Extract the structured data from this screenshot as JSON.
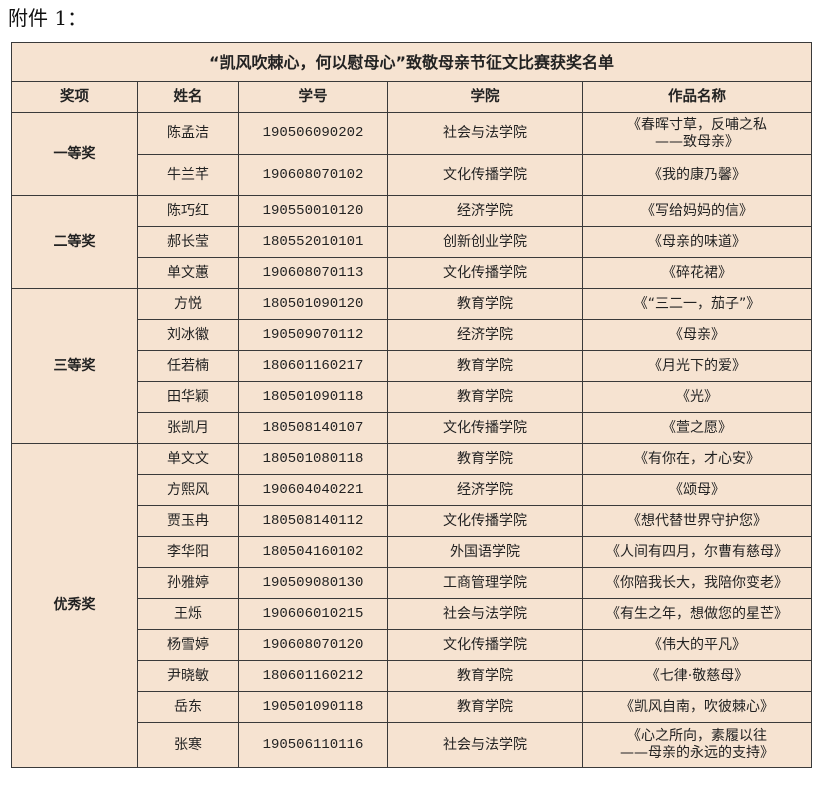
{
  "caption": "附件 1：",
  "table": {
    "title": "“凯风吹棘心，何以慰母心”致敬母亲节征文比赛获奖名单",
    "headers": [
      "奖项",
      "姓名",
      "学号",
      "学院",
      "作品名称"
    ],
    "groups": [
      {
        "award": "一等奖",
        "rows": [
          {
            "name": "陈孟洁",
            "id": "190506090202",
            "college": "社会与法学院",
            "work": "《春晖寸草，反哺之私",
            "work2": "——致母亲》"
          },
          {
            "name": "牛兰芊",
            "id": "190608070102",
            "college": "文化传播学院",
            "work": "《我的康乃馨》"
          }
        ]
      },
      {
        "award": "二等奖",
        "rows": [
          {
            "name": "陈巧红",
            "id": "190550010120",
            "college": "经济学院",
            "work": "《写给妈妈的信》"
          },
          {
            "name": "郝长莹",
            "id": "180552010101",
            "college": "创新创业学院",
            "work": "《母亲的味道》"
          },
          {
            "name": "单文蕙",
            "id": "190608070113",
            "college": "文化传播学院",
            "work": "《碎花裙》"
          }
        ]
      },
      {
        "award": "三等奖",
        "rows": [
          {
            "name": "方悦",
            "id": "180501090120",
            "college": "教育学院",
            "work": "《“三二一，茄子”》"
          },
          {
            "name": "刘冰徽",
            "id": "190509070112",
            "college": "经济学院",
            "work": "《母亲》"
          },
          {
            "name": "任若楠",
            "id": "180601160217",
            "college": "教育学院",
            "work": "《月光下的爱》"
          },
          {
            "name": "田华颖",
            "id": "180501090118",
            "college": "教育学院",
            "work": "《光》"
          },
          {
            "name": "张凯月",
            "id": "180508140107",
            "college": "文化传播学院",
            "work": "《萱之愿》"
          }
        ]
      },
      {
        "award": "优秀奖",
        "rows": [
          {
            "name": "单文文",
            "id": "180501080118",
            "college": "教育学院",
            "work": "《有你在，才心安》"
          },
          {
            "name": "方熙风",
            "id": "190604040221",
            "college": "经济学院",
            "work": "《颂母》"
          },
          {
            "name": "贾玉冉",
            "id": "180508140112",
            "college": "文化传播学院",
            "work": "《想代替世界守护您》"
          },
          {
            "name": "李华阳",
            "id": "180504160102",
            "college": "外国语学院",
            "work": "《人间有四月，尔曹有慈母》"
          },
          {
            "name": "孙雅婷",
            "id": "190509080130",
            "college": "工商管理学院",
            "work": "《你陪我长大，我陪你变老》"
          },
          {
            "name": "王烁",
            "id": "190606010215",
            "college": "社会与法学院",
            "work": "《有生之年，想做您的星芒》"
          },
          {
            "name": "杨雪婷",
            "id": "190608070120",
            "college": "文化传播学院",
            "work": "《伟大的平凡》"
          },
          {
            "name": "尹晓敏",
            "id": "180601160212",
            "college": "教育学院",
            "work": "《七律·敬慈母》"
          },
          {
            "name": "岳东",
            "id": "190501090118",
            "college": "教育学院",
            "work": "《凯风自南，吹彼棘心》"
          },
          {
            "name": "张寒",
            "id": "190506110116",
            "college": "社会与法学院",
            "work": "《心之所向，素履以往",
            "work2": "——母亲的永远的支持》"
          }
        ]
      }
    ]
  }
}
